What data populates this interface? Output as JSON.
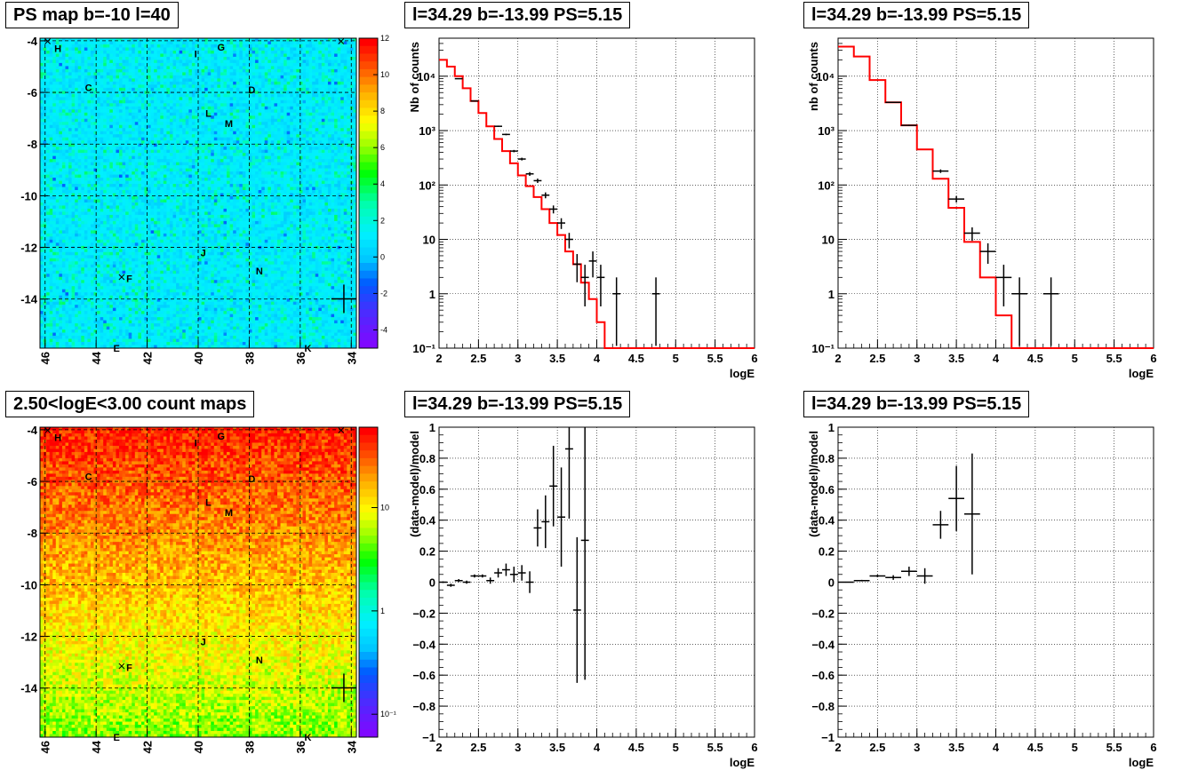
{
  "panels": {
    "map1": {
      "title": "PS map b=-10 l=40",
      "y_ticks": [
        "-4",
        "-6",
        "-8",
        "-10",
        "-12",
        "-14"
      ],
      "x_ticks": [
        "46",
        "44",
        "42",
        "40",
        "38",
        "36",
        "34"
      ],
      "colorbar_ticks": [
        "12",
        "10",
        "8",
        "6",
        "4",
        "2",
        "0",
        "-2",
        "-4"
      ],
      "source_labels": [
        {
          "text": "H",
          "x": 45.5,
          "y": -4.3
        },
        {
          "text": "G",
          "x": 39.1,
          "y": -4.25
        },
        {
          "text": "I",
          "x": 40.1,
          "y": -4.5
        },
        {
          "text": "C",
          "x": 44.3,
          "y": -5.8
        },
        {
          "text": "D",
          "x": 37.9,
          "y": -5.9
        },
        {
          "text": "L",
          "x": 39.6,
          "y": -6.8
        },
        {
          "text": "M",
          "x": 38.8,
          "y": -7.2
        },
        {
          "text": "J",
          "x": 39.8,
          "y": -12.2
        },
        {
          "text": "N",
          "x": 37.6,
          "y": -12.9
        },
        {
          "text": "F",
          "x": 42.7,
          "y": -13.2
        },
        {
          "text": "E",
          "x": 43.2,
          "y": -15.9
        },
        {
          "text": "K",
          "x": 35.7,
          "y": -15.9
        }
      ]
    },
    "spec1": {
      "title": "l=34.29 b=-13.99 PS=5.15",
      "ylabel": "Nb of counts",
      "xlabel": "logE",
      "x_ticks": [
        "2",
        "2.5",
        "3",
        "3.5",
        "4",
        "4.5",
        "5",
        "5.5",
        "6"
      ],
      "y_ticks": [
        "10⁻¹",
        "1",
        "10",
        "10²",
        "10³",
        "10⁴"
      ]
    },
    "spec2": {
      "title": "l=34.29 b=-13.99 PS=5.15",
      "ylabel": "nb of counts",
      "xlabel": "logE",
      "x_ticks": [
        "2",
        "2.5",
        "3",
        "3.5",
        "4",
        "4.5",
        "5",
        "5.5",
        "6"
      ],
      "y_ticks": [
        "10⁻¹",
        "1",
        "10",
        "10²",
        "10³",
        "10⁴"
      ]
    },
    "map2": {
      "title": "2.50<logE<3.00 count maps",
      "y_ticks": [
        "-4",
        "-6",
        "-8",
        "-10",
        "-12",
        "-14"
      ],
      "x_ticks": [
        "46",
        "44",
        "42",
        "40",
        "38",
        "36",
        "34"
      ],
      "colorbar_ticks": [
        "10",
        "1",
        "10⁻¹"
      ]
    },
    "res1": {
      "title": "l=34.29 b=-13.99 PS=5.15",
      "ylabel": "(data-model)/model",
      "xlabel": "logE",
      "x_ticks": [
        "2",
        "2.5",
        "3",
        "3.5",
        "4",
        "4.5",
        "5",
        "5.5",
        "6"
      ],
      "y_ticks": [
        "−1",
        "−0.8",
        "−0.6",
        "−0.4",
        "−0.2",
        "0",
        "0.2",
        "0.4",
        "0.6",
        "0.8",
        "1"
      ]
    },
    "res2": {
      "title": "l=34.29 b=-13.99 PS=5.15",
      "ylabel": "(data-model)/model",
      "xlabel": "logE",
      "x_ticks": [
        "2",
        "2.5",
        "3",
        "3.5",
        "4",
        "4.5",
        "5",
        "5.5",
        "6"
      ],
      "y_ticks": [
        "−1",
        "−0.8",
        "−0.6",
        "−0.4",
        "−0.2",
        "0",
        "0.2",
        "0.4",
        "0.6",
        "0.8",
        "1"
      ]
    }
  },
  "chart_data": [
    {
      "type": "heatmap",
      "title": "PS map b=-10 l=40",
      "xlim": [
        46.2,
        33.8
      ],
      "ylim": [
        -15.9,
        -3.9
      ],
      "zlim": [
        -5,
        12
      ],
      "typical_value": 0,
      "marker": {
        "l": 34.29,
        "b": -13.99
      }
    },
    {
      "type": "line",
      "title": "l=34.29 b=-13.99 PS=5.15",
      "xlabel": "logE",
      "ylabel": "Nb of counts",
      "xlim": [
        2,
        6
      ],
      "ylim": [
        0.1,
        50000
      ],
      "log_y": true,
      "model_bins": [
        2.0,
        2.1,
        2.2,
        2.3,
        2.4,
        2.5,
        2.6,
        2.7,
        2.8,
        2.9,
        3.0,
        3.1,
        3.2,
        3.3,
        3.4,
        3.5,
        3.6,
        3.7,
        3.8,
        3.9,
        4.0,
        4.1,
        4.2,
        6.0
      ],
      "model_values": [
        20000,
        15000,
        10000,
        6000,
        3500,
        2100,
        1200,
        700,
        420,
        250,
        150,
        95,
        60,
        36,
        20,
        12,
        6,
        3.5,
        1.6,
        0.8,
        0.3,
        0.1,
        0.1
      ],
      "data_points": [
        {
          "x": 2.25,
          "y": 9000
        },
        {
          "x": 2.45,
          "y": 3500
        },
        {
          "x": 2.75,
          "y": 1200
        },
        {
          "x": 2.85,
          "y": 850
        },
        {
          "x": 2.95,
          "y": 420
        },
        {
          "x": 3.05,
          "y": 300
        },
        {
          "x": 3.15,
          "y": 160
        },
        {
          "x": 3.25,
          "y": 120
        },
        {
          "x": 3.35,
          "y": 65
        },
        {
          "x": 3.45,
          "y": 36
        },
        {
          "x": 3.55,
          "y": 20
        },
        {
          "x": 3.65,
          "y": 10
        },
        {
          "x": 3.75,
          "y": 3.5
        },
        {
          "x": 3.85,
          "y": 2
        },
        {
          "x": 3.95,
          "y": 4
        },
        {
          "x": 4.05,
          "y": 2
        },
        {
          "x": 4.25,
          "y": 1
        },
        {
          "x": 4.75,
          "y": 1
        }
      ]
    },
    {
      "type": "line",
      "title": "l=34.29 b=-13.99 PS=5.15",
      "xlabel": "logE",
      "ylabel": "nb of counts",
      "xlim": [
        2,
        6
      ],
      "ylim": [
        0.1,
        50000
      ],
      "log_y": true,
      "model_bins": [
        2.0,
        2.2,
        2.4,
        2.6,
        2.8,
        3.0,
        3.2,
        3.4,
        3.6,
        3.8,
        4.0,
        4.2,
        4.4,
        6.0
      ],
      "model_values": [
        35000,
        23000,
        8500,
        3300,
        1250,
        450,
        130,
        38,
        9,
        2,
        0.4,
        0.1,
        0.1
      ],
      "data_points": [
        {
          "x": 2.7,
          "y": 3300
        },
        {
          "x": 2.9,
          "y": 1250
        },
        {
          "x": 3.3,
          "y": 180
        },
        {
          "x": 3.5,
          "y": 55
        },
        {
          "x": 3.7,
          "y": 13
        },
        {
          "x": 3.9,
          "y": 6
        },
        {
          "x": 4.1,
          "y": 2
        },
        {
          "x": 4.3,
          "y": 1
        },
        {
          "x": 4.7,
          "y": 1
        }
      ]
    },
    {
      "type": "heatmap",
      "title": "2.50<logE<3.00 count maps",
      "xlim": [
        46.2,
        33.8
      ],
      "ylim": [
        -15.9,
        -3.9
      ],
      "zlim": [
        0.06,
        60
      ],
      "log_z": true,
      "marker": {
        "l": 34.29,
        "b": -13.99
      }
    },
    {
      "type": "scatter",
      "title": "l=34.29 b=-13.99 PS=5.15",
      "xlabel": "logE",
      "ylabel": "(data-model)/model",
      "xlim": [
        2,
        6
      ],
      "ylim": [
        -1,
        1
      ],
      "points": [
        {
          "x": 2.05,
          "y": 0.0,
          "err": 0.005
        },
        {
          "x": 2.15,
          "y": -0.02,
          "err": 0.01
        },
        {
          "x": 2.25,
          "y": 0.01,
          "err": 0.01
        },
        {
          "x": 2.35,
          "y": 0.0,
          "err": 0.01
        },
        {
          "x": 2.45,
          "y": 0.04,
          "err": 0.01
        },
        {
          "x": 2.55,
          "y": 0.04,
          "err": 0.01
        },
        {
          "x": 2.65,
          "y": 0.01,
          "err": 0.02
        },
        {
          "x": 2.75,
          "y": 0.06,
          "err": 0.03
        },
        {
          "x": 2.85,
          "y": 0.08,
          "err": 0.04
        },
        {
          "x": 2.95,
          "y": 0.05,
          "err": 0.05
        },
        {
          "x": 3.05,
          "y": 0.06,
          "err": 0.05
        },
        {
          "x": 3.15,
          "y": 0.0,
          "err": 0.07
        },
        {
          "x": 3.25,
          "y": 0.35,
          "err": 0.12
        },
        {
          "x": 3.35,
          "y": 0.39,
          "err": 0.17
        },
        {
          "x": 3.45,
          "y": 0.62,
          "err": 0.26
        },
        {
          "x": 3.55,
          "y": 0.42,
          "err": 0.32
        },
        {
          "x": 3.65,
          "y": 0.86,
          "err": 0.45
        },
        {
          "x": 3.75,
          "y": -0.18,
          "err": 0.47
        },
        {
          "x": 3.85,
          "y": 0.27,
          "err": 0.9
        }
      ]
    },
    {
      "type": "scatter",
      "title": "l=34.29 b=-13.99 PS=5.15",
      "xlabel": "logE",
      "ylabel": "(data-model)/model",
      "xlim": [
        2,
        6
      ],
      "ylim": [
        -1,
        1
      ],
      "points": [
        {
          "x": 2.1,
          "y": 0.0,
          "err": 0.003
        },
        {
          "x": 2.3,
          "y": 0.01,
          "err": 0.005
        },
        {
          "x": 2.5,
          "y": 0.04,
          "err": 0.008
        },
        {
          "x": 2.7,
          "y": 0.03,
          "err": 0.015
        },
        {
          "x": 2.9,
          "y": 0.07,
          "err": 0.03
        },
        {
          "x": 3.1,
          "y": 0.04,
          "err": 0.05
        },
        {
          "x": 3.3,
          "y": 0.37,
          "err": 0.09
        },
        {
          "x": 3.5,
          "y": 0.54,
          "err": 0.21
        },
        {
          "x": 3.7,
          "y": 0.44,
          "err": 0.39
        }
      ]
    }
  ]
}
